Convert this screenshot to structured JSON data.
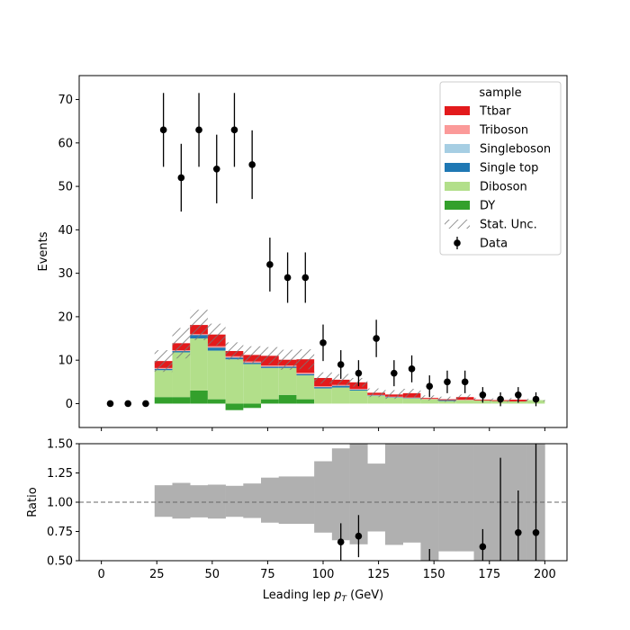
{
  "chart_data": [
    {
      "type": "bar",
      "subtype": "stacked-histogram-with-data-points",
      "ylabel": "Events",
      "xlim": [
        -10,
        210
      ],
      "ylim": [
        -5.5,
        75.5
      ],
      "yticks": [
        0,
        10,
        20,
        30,
        40,
        50,
        60,
        70
      ],
      "grid": false,
      "legend": {
        "title": "sample",
        "placement": "top-right",
        "entries": [
          "Ttbar",
          "Triboson",
          "Singleboson",
          "Single top",
          "Diboson",
          "DY",
          "Stat. Unc.",
          "Data"
        ]
      },
      "bin_edges": [
        0,
        8,
        16,
        24,
        32,
        40,
        48,
        56,
        64,
        72,
        80,
        88,
        96,
        104,
        112,
        120,
        128,
        136,
        144,
        152,
        160,
        168,
        176,
        184,
        192,
        200
      ],
      "stack_order": [
        "DY",
        "Diboson",
        "Single top",
        "Singleboson",
        "Triboson",
        "Ttbar"
      ],
      "series": [
        {
          "name": "DY",
          "color": "#33a02c",
          "values": [
            0,
            0,
            0,
            1.5,
            1.5,
            3.0,
            1.0,
            -1.5,
            -1.0,
            1.0,
            2.0,
            1.0,
            0,
            0,
            0,
            0,
            0,
            0,
            0,
            0,
            0,
            0,
            0,
            0,
            0
          ]
        },
        {
          "name": "Diboson",
          "color": "#b2df8a",
          "values": [
            0,
            0,
            0,
            6.2,
            10.3,
            12.0,
            11.2,
            10.2,
            9.1,
            7.2,
            6.2,
            5.5,
            3.5,
            3.7,
            3.0,
            1.8,
            1.4,
            1.2,
            1.0,
            0.6,
            0.8,
            0.7,
            0.6,
            0.5,
            0.8
          ]
        },
        {
          "name": "Single top",
          "color": "#1f78b4",
          "values": [
            0,
            0,
            0,
            0.3,
            0.3,
            0.8,
            0.7,
            0.4,
            0.3,
            0.3,
            0.3,
            0.3,
            0.3,
            0.4,
            0.2,
            0.1,
            0.1,
            0.1,
            0,
            0.2,
            0,
            0,
            0,
            0,
            0
          ]
        },
        {
          "name": "Singleboson",
          "color": "#a6cee3",
          "values": [
            0,
            0,
            0,
            0,
            0,
            0,
            0,
            0,
            0,
            0,
            0,
            0,
            0,
            0,
            0,
            0,
            0,
            0,
            0,
            0,
            0,
            0,
            0,
            0,
            0
          ]
        },
        {
          "name": "Triboson",
          "color": "#fb9a99",
          "values": [
            0,
            0,
            0,
            0.2,
            0.2,
            0.2,
            0.3,
            0.3,
            0.3,
            0.3,
            0.3,
            0.3,
            0.2,
            0.2,
            0.2,
            0.1,
            0.1,
            0.1,
            0.1,
            0,
            0.1,
            0,
            0,
            0,
            0
          ]
        },
        {
          "name": "Ttbar",
          "color": "#e31a1c",
          "values": [
            0,
            0,
            0,
            1.6,
            1.6,
            2.1,
            2.7,
            1.2,
            1.5,
            2.2,
            1.3,
            3.1,
            1.9,
            1.2,
            1.5,
            0.5,
            0.5,
            1.0,
            0.2,
            0.2,
            0.6,
            0.2,
            0.2,
            0.4,
            0
          ]
        }
      ],
      "stat_unc": [
        0,
        0,
        0,
        2.5,
        3.5,
        3.5,
        2.5,
        2.0,
        2.0,
        2.0,
        2.3,
        2.3,
        1.3,
        1.3,
        1.0,
        1.0,
        1.0,
        1.0,
        0.6,
        0.6,
        0.6,
        0.4,
        0.4,
        0.4,
        0.3
      ],
      "data": {
        "name": "Data",
        "x": [
          4,
          12,
          20,
          28,
          36,
          44,
          52,
          60,
          68,
          76,
          84,
          92,
          100,
          108,
          116,
          124,
          132,
          140,
          148,
          156,
          164,
          172,
          180,
          188,
          196
        ],
        "y": [
          0,
          0,
          0,
          63,
          52,
          63,
          54,
          63,
          55,
          32,
          29,
          29,
          14,
          9,
          7,
          15,
          7,
          8,
          4,
          5,
          5,
          2,
          1,
          2,
          1
        ],
        "yerr": [
          0,
          0,
          0,
          8.5,
          7.8,
          8.5,
          7.9,
          8.5,
          7.9,
          6.2,
          5.8,
          5.8,
          4.2,
          3.3,
          3.0,
          4.3,
          3.0,
          3.1,
          2.5,
          2.6,
          2.6,
          1.8,
          1.6,
          1.8,
          1.6
        ]
      }
    },
    {
      "type": "bar",
      "subtype": "ratio-panel",
      "xlabel": "Leading lep $p_T$ (GeV)",
      "xlabel_parts": {
        "prefix": "Leading lep ",
        "var": "p",
        "sub": "T",
        "suffix": " (GeV)"
      },
      "ylabel": "Ratio",
      "xlim": [
        -10,
        210
      ],
      "ylim": [
        0.5,
        1.5
      ],
      "xticks": [
        0,
        25,
        50,
        75,
        100,
        125,
        150,
        175,
        200
      ],
      "yticks": [
        "0.50",
        "0.75",
        "1.00",
        "1.25",
        "1.50"
      ],
      "reference_line": 1.0,
      "band_color": "#b0b0b0",
      "bin_edges": [
        24,
        32,
        40,
        48,
        56,
        64,
        72,
        80,
        88,
        96,
        104,
        112,
        120,
        128,
        136,
        144,
        152,
        160,
        168,
        176,
        184,
        192,
        200
      ],
      "band_low": [
        0.875,
        0.86,
        0.87,
        0.86,
        0.875,
        0.865,
        0.825,
        0.815,
        0.815,
        0.74,
        0.675,
        0.64,
        0.75,
        0.635,
        0.655,
        0.5,
        0.58,
        0.58,
        0.5,
        0.5,
        0.5,
        0.5
      ],
      "band_high": [
        1.145,
        1.165,
        1.145,
        1.15,
        1.14,
        1.16,
        1.21,
        1.22,
        1.22,
        1.35,
        1.46,
        1.5,
        1.33,
        1.5,
        1.5,
        1.5,
        1.5,
        1.5,
        1.5,
        1.5,
        1.5,
        1.5
      ],
      "points": {
        "x": [
          108,
          116,
          148,
          172,
          180,
          188,
          196
        ],
        "y": [
          0.66,
          0.71,
          0.5,
          0.62,
          0.5,
          0.74,
          0.74
        ],
        "ylow": [
          0.44,
          0.53,
          0.33,
          0.44,
          0.35,
          0.38,
          0.35
        ],
        "yhigh": [
          0.82,
          0.89,
          0.6,
          0.77,
          1.38,
          1.1,
          1.5
        ],
        "draw_marker": [
          true,
          true,
          false,
          true,
          false,
          true,
          true
        ]
      }
    }
  ]
}
